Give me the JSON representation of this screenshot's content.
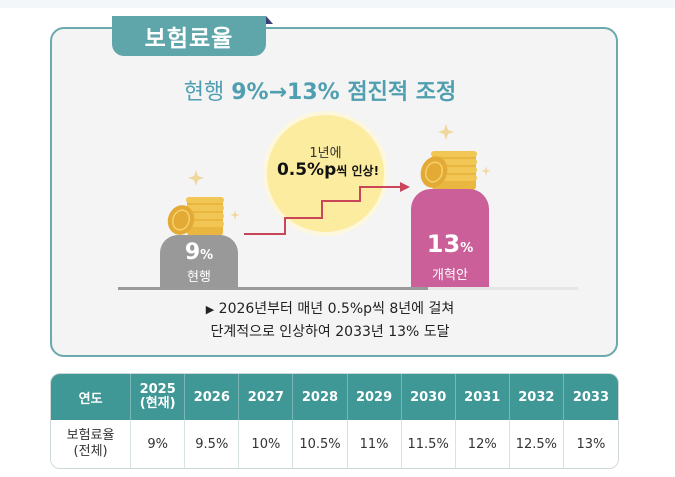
{
  "panel": {
    "tab_title": "보험료율",
    "headline_prefix": "현행 ",
    "headline_from": "9%",
    "headline_arrow": "→",
    "headline_to": "13% 점진적 조정",
    "bubble_line1": "1년에",
    "bubble_line2_main": "0.5%p",
    "bubble_line2_rest": "씩 인상!",
    "current": {
      "value": "9",
      "unit": "%",
      "label": "현행"
    },
    "reform": {
      "value": "13",
      "unit": "%",
      "label": "개혁안"
    },
    "note_arrow": "▶",
    "note_line1": "2026년부터 매년 0.5%p씩 8년에 걸쳐",
    "note_line2": "단계적으로 인상하여 2033년 13% 도달"
  },
  "colors": {
    "teal": "#5ea6aa",
    "table_header": "#3f9796",
    "reform_pink": "#cb5f9a",
    "current_gray": "#999999",
    "bubble": "#fbec9f",
    "arrow_red": "#c9465a"
  },
  "table": {
    "header": [
      "연도",
      "2025\n(현재)",
      "2026",
      "2027",
      "2028",
      "2029",
      "2030",
      "2031",
      "2032",
      "2033"
    ],
    "header_parts": {
      "y2025": "2025",
      "y2025_note": "(현재)"
    },
    "row_label_1": "보험료율",
    "row_label_2": "(전체)",
    "row_values": [
      "9%",
      "9.5%",
      "10%",
      "10.5%",
      "11%",
      "11.5%",
      "12%",
      "12.5%",
      "13%"
    ]
  }
}
